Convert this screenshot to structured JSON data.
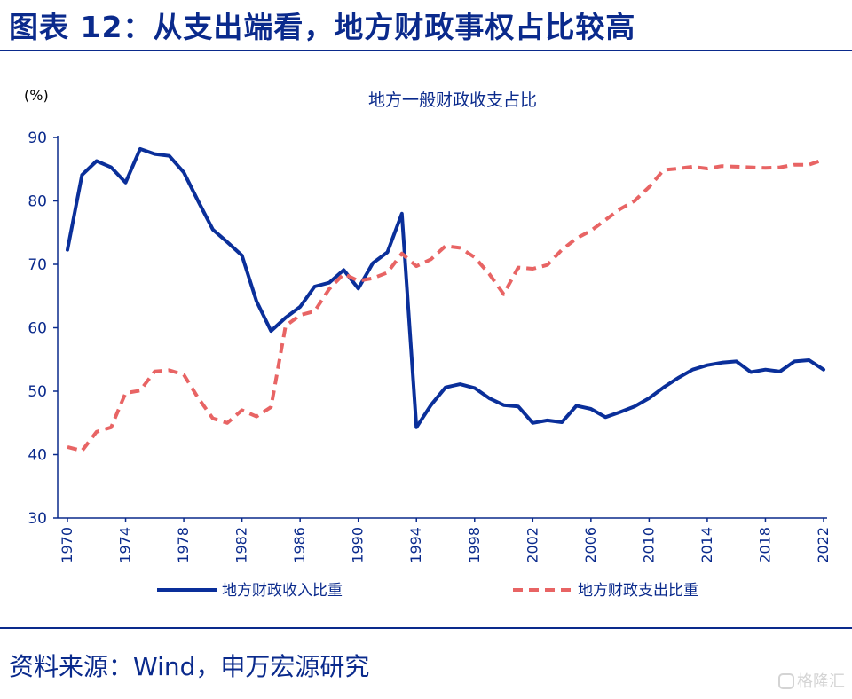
{
  "header": {
    "title": "图表 12：从支出端看，地方财政事权占比较高"
  },
  "footer": {
    "source": "资料来源：Wind，申万宏源研究",
    "watermark": "格隆汇"
  },
  "colors": {
    "brand": "#0a2a8c",
    "income_series": "#0a2f9a",
    "expense_series": "#e86464"
  },
  "chart_data": {
    "type": "line",
    "title": "地方一般财政收支占比",
    "ylabel": "(%)",
    "xlabel": "",
    "ylim": [
      30,
      90
    ],
    "yticks": [
      30,
      40,
      50,
      60,
      70,
      80,
      90
    ],
    "xlim": [
      1970,
      2022
    ],
    "xticks": [
      1970,
      1974,
      1978,
      1982,
      1986,
      1990,
      1994,
      1998,
      2002,
      2006,
      2010,
      2014,
      2018,
      2022
    ],
    "grid": false,
    "legend_position": "bottom",
    "x": [
      1970,
      1971,
      1972,
      1973,
      1974,
      1975,
      1976,
      1977,
      1978,
      1979,
      1980,
      1981,
      1982,
      1983,
      1984,
      1985,
      1986,
      1987,
      1988,
      1989,
      1990,
      1991,
      1992,
      1993,
      1994,
      1995,
      1996,
      1997,
      1998,
      1999,
      2000,
      2001,
      2002,
      2003,
      2004,
      2005,
      2006,
      2007,
      2008,
      2009,
      2010,
      2011,
      2012,
      2013,
      2014,
      2015,
      2016,
      2017,
      2018,
      2019,
      2020,
      2021,
      2022
    ],
    "series": [
      {
        "name": "地方财政收入比重",
        "style": "solid",
        "values": [
          72.3,
          84.1,
          86.3,
          85.3,
          82.9,
          88.2,
          87.4,
          87.1,
          84.5,
          79.9,
          75.5,
          73.5,
          71.4,
          64.2,
          59.5,
          61.6,
          63.3,
          66.5,
          67.1,
          69.1,
          66.2,
          70.2,
          71.9,
          78.0,
          44.3,
          47.8,
          50.6,
          51.1,
          50.5,
          48.9,
          47.8,
          47.6,
          45.0,
          45.4,
          45.1,
          47.7,
          47.2,
          45.9,
          46.7,
          47.6,
          48.9,
          50.6,
          52.1,
          53.4,
          54.1,
          54.5,
          54.7,
          53.0,
          53.4,
          53.1,
          54.7,
          54.9,
          53.4
        ]
      },
      {
        "name": "地方财政支出比重",
        "style": "dashed",
        "values": [
          41.2,
          40.6,
          43.6,
          44.3,
          49.7,
          50.1,
          53.1,
          53.3,
          52.6,
          48.9,
          45.7,
          45.0,
          47.0,
          46.0,
          47.5,
          60.3,
          62.0,
          62.6,
          66.1,
          68.5,
          67.4,
          67.8,
          68.7,
          71.7,
          69.7,
          70.8,
          72.9,
          72.6,
          71.1,
          68.5,
          65.3,
          69.5,
          69.3,
          69.9,
          72.3,
          74.1,
          75.3,
          77.0,
          78.7,
          80.0,
          82.2,
          84.9,
          85.1,
          85.4,
          85.1,
          85.5,
          85.4,
          85.3,
          85.2,
          85.3,
          85.7,
          85.7,
          86.5
        ]
      }
    ]
  }
}
